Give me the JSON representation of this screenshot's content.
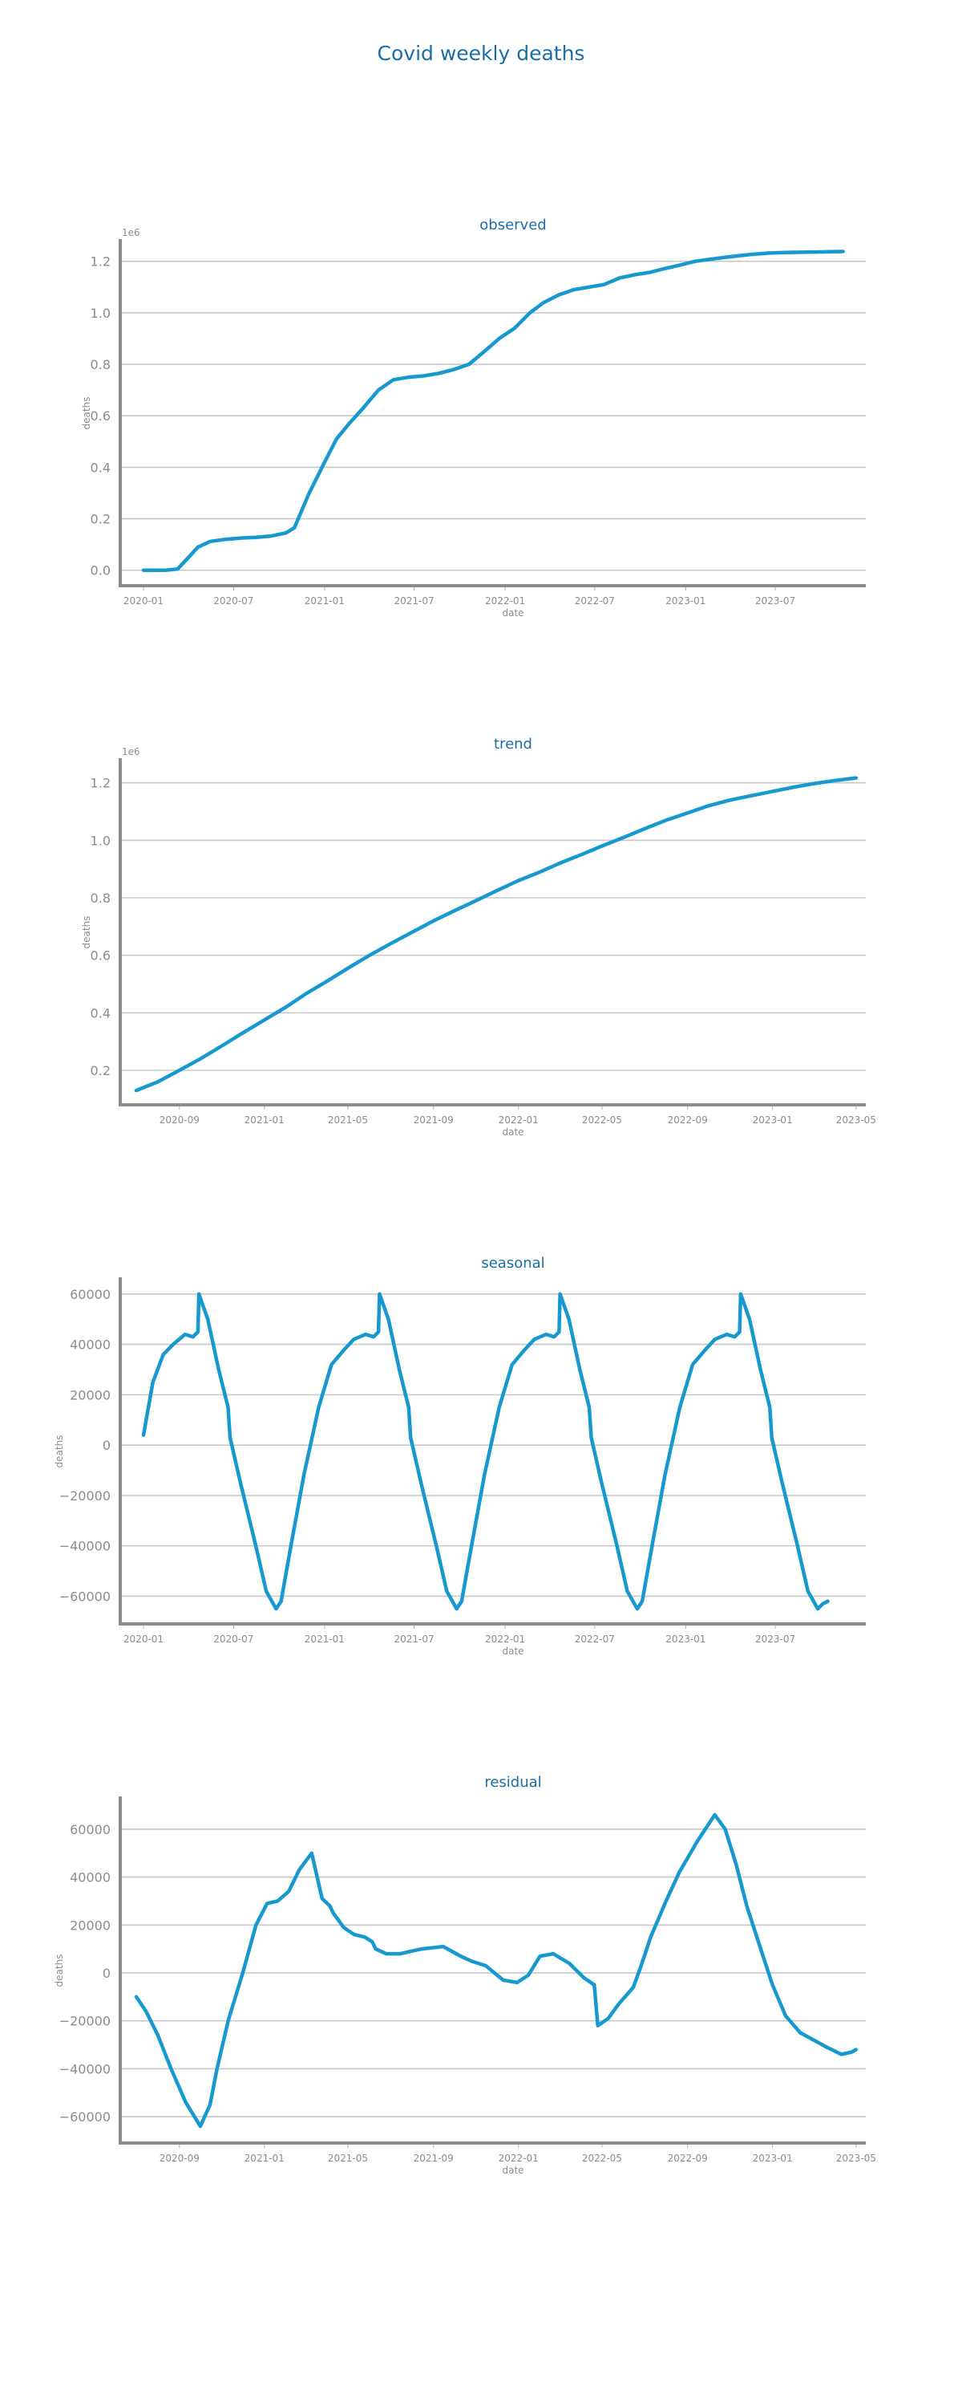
{
  "title": "Covid weekly deaths",
  "colors": {
    "line": "#1799d0",
    "title": "#1a6ea8",
    "axis": "#8c8c8c",
    "grid": "#c8c8c8"
  },
  "chart_data": [
    {
      "type": "line",
      "title": "observed",
      "xlabel": "date",
      "ylabel": "deaths",
      "offset_label": "1e6",
      "grid": "horizontal",
      "xlim": [
        "2019-11-15",
        "2023-12-31"
      ],
      "ylim": [
        -0.06,
        1.28
      ],
      "xticks": [
        "2020-01",
        "2020-07",
        "2021-01",
        "2021-07",
        "2022-01",
        "2022-07",
        "2023-01",
        "2023-07"
      ],
      "yticks": [
        "0.0",
        "0.2",
        "0.4",
        "0.6",
        "0.8",
        "1.0",
        "1.2"
      ],
      "series": [
        {
          "x": [
            "2020-01-01",
            "2020-02-15",
            "2020-03-10",
            "2020-04-01",
            "2020-04-20",
            "2020-05-15",
            "2020-06-15",
            "2020-07-15",
            "2020-08-15",
            "2020-09-15",
            "2020-10-15",
            "2020-11-01",
            "2020-12-01",
            "2021-01-01",
            "2021-01-25",
            "2021-02-20",
            "2021-03-20",
            "2021-04-20",
            "2021-05-20",
            "2021-06-20",
            "2021-07-20",
            "2021-08-20",
            "2021-09-20",
            "2021-10-20",
            "2021-11-20",
            "2021-12-20",
            "2022-01-20",
            "2022-02-20",
            "2022-03-20",
            "2022-04-20",
            "2022-05-20",
            "2022-06-20",
            "2022-07-20",
            "2022-08-20",
            "2022-09-20",
            "2022-10-20",
            "2022-11-20",
            "2022-12-20",
            "2023-01-20",
            "2023-02-20",
            "2023-03-20",
            "2023-04-20",
            "2023-05-20",
            "2023-06-20",
            "2023-07-20",
            "2023-08-20",
            "2023-09-20",
            "2023-10-20",
            "2023-11-15"
          ],
          "y": [
            0,
            0,
            0.005,
            0.05,
            0.09,
            0.112,
            0.12,
            0.125,
            0.128,
            0.133,
            0.145,
            0.165,
            0.3,
            0.42,
            0.51,
            0.57,
            0.63,
            0.7,
            0.74,
            0.75,
            0.755,
            0.765,
            0.78,
            0.8,
            0.85,
            0.9,
            0.94,
            1.0,
            1.04,
            1.07,
            1.09,
            1.1,
            1.11,
            1.135,
            1.148,
            1.157,
            1.172,
            1.185,
            1.2,
            1.208,
            1.215,
            1.222,
            1.228,
            1.232,
            1.234,
            1.235,
            1.236,
            1.237,
            1.238
          ]
        }
      ]
    },
    {
      "type": "line",
      "title": "trend",
      "xlabel": "date",
      "ylabel": "deaths",
      "offset_label": "1e6",
      "grid": "horizontal",
      "xlim": [
        "2020-06-08",
        "2023-05-15"
      ],
      "ylim": [
        0.08,
        1.28
      ],
      "xticks": [
        "2020-09",
        "2021-01",
        "2021-05",
        "2021-09",
        "2022-01",
        "2022-05",
        "2022-09",
        "2023-01",
        "2023-05"
      ],
      "yticks": [
        "0.2",
        "0.4",
        "0.6",
        "0.8",
        "1.0",
        "1.2"
      ],
      "series": [
        {
          "x": [
            "2020-07-01",
            "2020-08-01",
            "2020-09-01",
            "2020-10-01",
            "2020-11-01",
            "2020-12-01",
            "2021-01-01",
            "2021-02-01",
            "2021-03-01",
            "2021-04-01",
            "2021-05-01",
            "2021-06-01",
            "2021-07-01",
            "2021-08-01",
            "2021-09-01",
            "2021-10-01",
            "2021-11-01",
            "2021-12-01",
            "2022-01-01",
            "2022-02-01",
            "2022-03-01",
            "2022-04-01",
            "2022-05-01",
            "2022-06-01",
            "2022-07-01",
            "2022-08-01",
            "2022-09-01",
            "2022-10-01",
            "2022-11-01",
            "2022-12-01",
            "2023-01-01",
            "2023-02-01",
            "2023-03-01",
            "2023-04-01",
            "2023-05-01"
          ],
          "y": [
            0.13,
            0.16,
            0.2,
            0.24,
            0.285,
            0.33,
            0.375,
            0.42,
            0.465,
            0.51,
            0.555,
            0.6,
            0.64,
            0.68,
            0.72,
            0.755,
            0.79,
            0.825,
            0.86,
            0.89,
            0.92,
            0.95,
            0.98,
            1.01,
            1.04,
            1.07,
            1.095,
            1.12,
            1.14,
            1.155,
            1.17,
            1.185,
            1.197,
            1.208,
            1.217
          ]
        }
      ]
    },
    {
      "type": "line",
      "title": "seasonal",
      "xlabel": "date",
      "ylabel": "deaths",
      "offset_label": "",
      "grid": "horizontal",
      "xlim": [
        "2019-11-15",
        "2023-12-31"
      ],
      "ylim": [
        -71000,
        66000
      ],
      "xticks": [
        "2020-01",
        "2020-07",
        "2021-01",
        "2021-07",
        "2022-01",
        "2022-07",
        "2023-01",
        "2023-07"
      ],
      "yticks": [
        "60000",
        "40000",
        "20000",
        "0",
        "−20000",
        "−40000",
        "−60000"
      ],
      "series": [
        {
          "x": [
            "2020-01-01",
            "2020-01-20",
            "2020-02-10",
            "2020-03-01",
            "2020-03-25",
            "2020-04-10",
            "2020-04-20",
            "2020-04-22",
            "2020-05-10",
            "2020-06-01",
            "2020-06-20",
            "2020-06-24",
            "2020-07-15",
            "2020-08-15",
            "2020-09-05",
            "2020-09-25",
            "2020-10-05",
            "2020-10-25",
            "2020-11-20",
            "2020-12-20",
            "2021-01-15",
            "2021-02-10",
            "2021-03-01",
            "2021-03-25",
            "2021-04-10",
            "2021-04-20",
            "2021-04-22",
            "2021-05-10",
            "2021-06-01",
            "2021-06-20",
            "2021-06-24",
            "2021-07-15",
            "2021-08-15",
            "2021-09-05",
            "2021-09-25",
            "2021-10-05",
            "2021-10-25",
            "2021-11-20",
            "2021-12-20",
            "2022-01-15",
            "2022-02-10",
            "2022-03-01",
            "2022-03-25",
            "2022-04-10",
            "2022-04-20",
            "2022-04-22",
            "2022-05-10",
            "2022-06-01",
            "2022-06-20",
            "2022-06-24",
            "2022-07-15",
            "2022-08-15",
            "2022-09-05",
            "2022-09-25",
            "2022-10-05",
            "2022-10-25",
            "2022-11-20",
            "2022-12-20",
            "2023-01-15",
            "2023-02-10",
            "2023-03-01",
            "2023-03-25",
            "2023-04-10",
            "2023-04-20",
            "2023-04-22",
            "2023-05-10",
            "2023-06-01",
            "2023-06-20",
            "2023-06-24",
            "2023-07-15",
            "2023-08-15",
            "2023-09-05",
            "2023-09-25",
            "2023-10-05",
            "2023-10-15"
          ],
          "y": [
            4000,
            25000,
            36000,
            40000,
            44000,
            43000,
            45000,
            60000,
            50000,
            30000,
            15000,
            3000,
            -15000,
            -40000,
            -58000,
            -65000,
            -62000,
            -40000,
            -12000,
            15000,
            32000,
            38000,
            42000,
            44000,
            43000,
            45000,
            60000,
            50000,
            30000,
            15000,
            3000,
            -15000,
            -40000,
            -58000,
            -65000,
            -62000,
            -40000,
            -12000,
            15000,
            32000,
            38000,
            42000,
            44000,
            43000,
            45000,
            60000,
            50000,
            30000,
            15000,
            3000,
            -15000,
            -40000,
            -58000,
            -65000,
            -62000,
            -40000,
            -12000,
            15000,
            32000,
            38000,
            42000,
            44000,
            43000,
            45000,
            60000,
            50000,
            30000,
            15000,
            3000,
            -15000,
            -40000,
            -58000,
            -65000,
            -63000,
            -62000
          ]
        }
      ]
    },
    {
      "type": "line",
      "title": "residual",
      "xlabel": "date",
      "ylabel": "deaths",
      "offset_label": "",
      "grid": "horizontal",
      "xlim": [
        "2020-06-08",
        "2023-05-15"
      ],
      "ylim": [
        -71000,
        73000
      ],
      "xticks": [
        "2020-09",
        "2021-01",
        "2021-05",
        "2021-09",
        "2022-01",
        "2022-05",
        "2022-09",
        "2023-01",
        "2023-05"
      ],
      "yticks": [
        "60000",
        "40000",
        "20000",
        "0",
        "−20000",
        "−40000",
        "−60000"
      ],
      "series": [
        {
          "x": [
            "2020-07-01",
            "2020-07-15",
            "2020-08-01",
            "2020-08-20",
            "2020-09-10",
            "2020-10-01",
            "2020-10-15",
            "2020-10-25",
            "2020-11-10",
            "2020-12-01",
            "2020-12-20",
            "2021-01-05",
            "2021-01-20",
            "2021-02-05",
            "2021-02-20",
            "2021-03-10",
            "2021-03-25",
            "2021-04-05",
            "2021-04-10",
            "2021-04-25",
            "2021-05-10",
            "2021-05-25",
            "2021-06-05",
            "2021-06-10",
            "2021-06-25",
            "2021-07-15",
            "2021-08-15",
            "2021-09-15",
            "2021-10-10",
            "2021-10-25",
            "2021-11-15",
            "2021-12-10",
            "2021-12-30",
            "2022-01-15",
            "2022-02-01",
            "2022-02-20",
            "2022-03-15",
            "2022-04-05",
            "2022-04-20",
            "2022-04-25",
            "2022-05-10",
            "2022-05-25",
            "2022-06-15",
            "2022-06-25",
            "2022-07-10",
            "2022-08-01",
            "2022-08-20",
            "2022-09-15",
            "2022-10-10",
            "2022-10-25",
            "2022-11-10",
            "2022-11-25",
            "2022-12-15",
            "2023-01-01",
            "2023-01-20",
            "2023-02-10",
            "2023-03-01",
            "2023-03-20",
            "2023-04-10",
            "2023-04-25",
            "2023-05-01"
          ],
          "y": [
            -10000,
            -16000,
            -26000,
            -40000,
            -54000,
            -64000,
            -55000,
            -40000,
            -20000,
            0,
            20000,
            29000,
            30000,
            34000,
            43000,
            50000,
            31000,
            28000,
            25000,
            19000,
            16000,
            15000,
            13000,
            10000,
            8000,
            8000,
            10000,
            11000,
            7000,
            5000,
            3000,
            -3000,
            -4000,
            -1000,
            7000,
            8000,
            4000,
            -2000,
            -5000,
            -22000,
            -19000,
            -13000,
            -6000,
            2000,
            15000,
            30000,
            42000,
            55000,
            66000,
            60000,
            45000,
            28000,
            10000,
            -5000,
            -18000,
            -25000,
            -28000,
            -31000,
            -34000,
            -33000,
            -32000
          ]
        }
      ]
    }
  ]
}
